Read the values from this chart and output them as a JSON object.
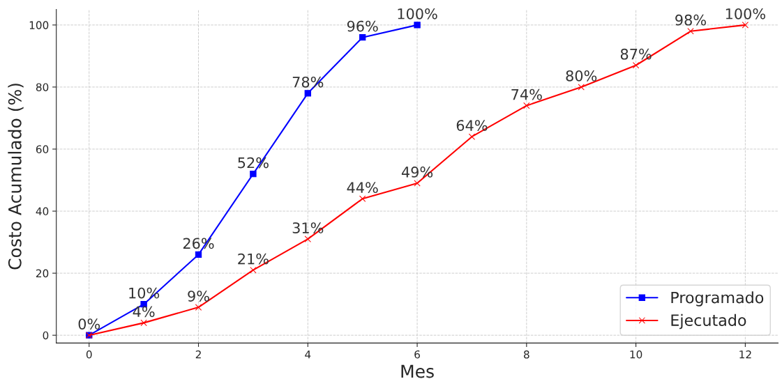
{
  "chart_data": {
    "type": "line",
    "xlabel": "Mes",
    "ylabel": "Costo Acumulado (%)",
    "series": [
      {
        "name": "Programado",
        "color": "#0000ff",
        "marker": "square",
        "x": [
          0,
          1,
          2,
          3,
          4,
          5,
          6
        ],
        "values": [
          0,
          10,
          26,
          52,
          78,
          96,
          100
        ],
        "value_labels": [
          "0%",
          "10%",
          "26%",
          "52%",
          "78%",
          "96%",
          "100%"
        ]
      },
      {
        "name": "Ejecutado",
        "color": "#ff0000",
        "marker": "cross",
        "x": [
          0,
          1,
          2,
          3,
          4,
          5,
          6,
          7,
          8,
          9,
          10,
          11,
          12
        ],
        "values": [
          0,
          4,
          9,
          21,
          31,
          44,
          49,
          64,
          74,
          80,
          87,
          98,
          100
        ],
        "value_labels": [
          null,
          "4%",
          "9%",
          "21%",
          "31%",
          "44%",
          "49%",
          "64%",
          "74%",
          "80%",
          "87%",
          "98%",
          "100%"
        ]
      }
    ],
    "xlim": [
      -0.6,
      12.6
    ],
    "xticks": [
      0,
      2,
      4,
      6,
      8,
      10,
      12
    ],
    "ylim": [
      -2.5,
      105
    ],
    "yticks": [
      0,
      20,
      40,
      60,
      80,
      100
    ],
    "grid": true,
    "legend": "bottom right",
    "line_style": "solid"
  }
}
